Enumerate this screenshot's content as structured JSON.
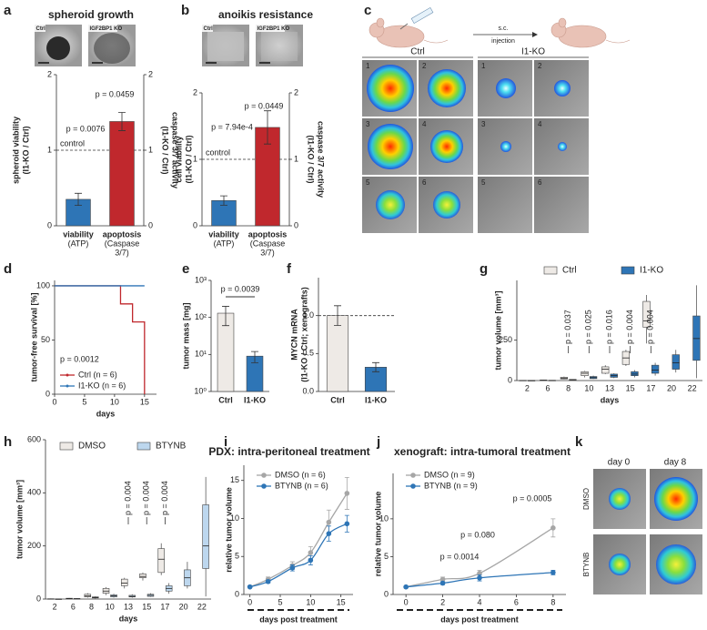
{
  "chart_data": [
    {
      "panel": "a",
      "type": "bar",
      "title": "spheroid growth",
      "image_labels": [
        "Ctrl",
        "IGF2BP1 KO"
      ],
      "categories": [
        [
          "viability",
          "(ATP)"
        ],
        [
          "apoptosis",
          "(Caspase",
          "3/7)"
        ]
      ],
      "series": [
        {
          "color": "#2e75b6",
          "values": [
            0.35,
            null
          ],
          "errors": [
            0.08,
            null
          ]
        },
        {
          "color": "#c0282d",
          "axis": "y2",
          "values": [
            null,
            1.38
          ],
          "errors": [
            null,
            0.12
          ]
        }
      ],
      "ylim": [
        0,
        2
      ],
      "yticks": [
        0,
        1,
        2
      ],
      "y2lim": [
        0,
        2
      ],
      "y2ticks": [
        0,
        1,
        2
      ],
      "ylabel": [
        "spheroid viability",
        "(I1-KO / Ctrl)"
      ],
      "ylabel_color": "#2e75b6",
      "y2label": [
        "caspase 3/7 activity",
        "(I1-KO / Ctrl)"
      ],
      "y2label_color": "#c0282d",
      "reference_line": {
        "value": 1,
        "label": "control"
      },
      "annotations": [
        "p = 0.0076",
        "p = 0.0459"
      ]
    },
    {
      "panel": "b",
      "type": "bar",
      "title": "anoikis resistance",
      "image_labels": [
        "Ctrl",
        "IGF2BP1 KO"
      ],
      "categories": [
        [
          "viability",
          "(ATP)"
        ],
        [
          "apoptosis",
          "(Caspase",
          "3/7)"
        ]
      ],
      "series": [
        {
          "color": "#2e75b6",
          "values": [
            0.38,
            null
          ],
          "errors": [
            0.07,
            null
          ]
        },
        {
          "color": "#c0282d",
          "axis": "y2",
          "values": [
            null,
            1.48
          ],
          "errors": [
            null,
            0.25
          ]
        }
      ],
      "ylim": [
        0,
        2
      ],
      "yticks": [
        0,
        1,
        2
      ],
      "y2lim": [
        0,
        2
      ],
      "y2ticks": [
        0,
        1,
        2
      ],
      "ylabel": [
        "cell viability",
        "(I1-KO / Ctrl)"
      ],
      "ylabel_color": "#2e75b6",
      "y2label": [
        "caspase 3/7 activity",
        "(I1-KO / Ctrl)"
      ],
      "y2label_color": "#c0282d",
      "reference_line": {
        "value": 1,
        "label": "control"
      },
      "annotations": [
        "p = 7.94e-4",
        "p = 0.0449"
      ]
    },
    {
      "panel": "d",
      "type": "line",
      "step": true,
      "series": [
        {
          "name": "Ctrl (n = 6)",
          "color": "#c0282d",
          "x": [
            0,
            11,
            13,
            15
          ],
          "values": [
            100,
            83.3,
            66.7,
            0
          ]
        },
        {
          "name": "I1-KO (n = 6)",
          "color": "#2e75b6",
          "x": [
            0,
            15
          ],
          "values": [
            100,
            100
          ]
        }
      ],
      "xlim": [
        0,
        17
      ],
      "xticks": [
        0,
        5,
        10,
        15
      ],
      "ylim": [
        0,
        105
      ],
      "yticks": [
        0,
        50,
        100
      ],
      "xlabel": "days",
      "ylabel": [
        "tumor-free survival [%]"
      ],
      "annotations": [
        "p = 0.0012"
      ]
    },
    {
      "panel": "e",
      "type": "bar",
      "ylog": true,
      "categories": [
        [
          "Ctrl"
        ],
        [
          "I1-KO"
        ]
      ],
      "values": [
        130,
        9
      ],
      "errors": [
        70,
        3
      ],
      "colors": [
        "#eeeae6",
        "#2e75b6"
      ],
      "ylim": [
        1,
        1000
      ],
      "yticks": [
        {
          "value": 1,
          "label": "10⁰"
        },
        {
          "value": 10,
          "label": "10¹"
        },
        {
          "value": 100,
          "label": "10²"
        },
        {
          "value": 1000,
          "label": "10³"
        }
      ],
      "ylabel": [
        "tumor mass [mg]"
      ],
      "annotations": [
        "p = 0.0039"
      ]
    },
    {
      "panel": "f",
      "type": "bar",
      "categories": [
        [
          "Ctrl"
        ],
        [
          "I1-KO"
        ]
      ],
      "values": [
        1.0,
        0.32
      ],
      "errors": [
        0.13,
        0.06
      ],
      "colors": [
        "#eeeae6",
        "#2e75b6"
      ],
      "ylim": [
        0,
        1.5
      ],
      "yticks": [
        {
          "value": 0,
          "label": "0.0"
        },
        {
          "value": 0.5,
          "label": "0.5"
        },
        {
          "value": 1,
          "label": "1.0"
        }
      ],
      "ylabel": [
        "MYCN mRNA",
        "(I1-KO / Ctrl; xenografts)"
      ],
      "reference_line": {
        "value": 1
      }
    },
    {
      "panel": "g",
      "type": "box",
      "categories": [
        "2",
        "6",
        "8",
        "10",
        "13",
        "15",
        "17",
        "20",
        "22"
      ],
      "series": [
        {
          "name": "Ctrl",
          "color": "#eeeae6",
          "boxes": [
            [
              0,
              0,
              0,
              1,
              1
            ],
            [
              0,
              1,
              2,
              3,
              4
            ],
            [
              8,
              10,
              15,
              20,
              25
            ],
            [
              20,
              30,
              45,
              55,
              60
            ],
            [
              40,
              45,
              70,
              85,
              95
            ],
            [
              90,
              100,
              140,
              180,
              190
            ],
            [
              230,
              330,
              370,
              490,
              530
            ],
            null,
            null
          ]
        },
        {
          "name": "I1-KO",
          "color": "#2e75b6",
          "boxes": [
            [
              0,
              0,
              0,
              0,
              0
            ],
            [
              0,
              0,
              1,
              1,
              2
            ],
            [
              2,
              3,
              5,
              7,
              8
            ],
            [
              10,
              12,
              18,
              25,
              30
            ],
            [
              15,
              20,
              30,
              40,
              45
            ],
            [
              20,
              30,
              40,
              55,
              65
            ],
            [
              30,
              45,
              65,
              95,
              110
            ],
            [
              50,
              70,
              110,
              160,
              190
            ],
            [
              15,
              125,
              260,
              400,
              590
            ]
          ]
        }
      ],
      "ylim": [
        0,
        620
      ],
      "yticks": [
        0,
        250
      ],
      "xlabel": "days",
      "ylabel": [
        "tumor volume [mm³]"
      ],
      "annotations": [
        {
          "text": "p = 0.037",
          "at": "8"
        },
        {
          "text": "p = 0.025",
          "at": "10"
        },
        {
          "text": "p = 0.016",
          "at": "13"
        },
        {
          "text": "p = 0.004",
          "at": "15"
        },
        {
          "text": "p = 0.004",
          "at": "17"
        }
      ]
    },
    {
      "panel": "h",
      "type": "box",
      "categories": [
        "2",
        "6",
        "8",
        "10",
        "13",
        "15",
        "17",
        "20",
        "22"
      ],
      "series": [
        {
          "name": "DMSO",
          "color": "#eeeae6",
          "boxes": [
            [
              0,
              0,
              0,
              1,
              2
            ],
            [
              0,
              1,
              2,
              3,
              4
            ],
            [
              5,
              8,
              12,
              18,
              22
            ],
            [
              15,
              22,
              30,
              40,
              45
            ],
            [
              40,
              50,
              60,
              75,
              80
            ],
            [
              70,
              80,
              85,
              95,
              100
            ],
            [
              90,
              100,
              150,
              190,
              210
            ],
            null,
            null
          ]
        },
        {
          "name": "BTYNB",
          "color": "#bdd7ee",
          "boxes": [
            [
              0,
              0,
              0,
              0,
              0
            ],
            [
              0,
              0,
              1,
              2,
              3
            ],
            [
              2,
              4,
              6,
              8,
              10
            ],
            [
              5,
              8,
              12,
              16,
              20
            ],
            [
              5,
              8,
              10,
              14,
              18
            ],
            [
              8,
              10,
              14,
              18,
              22
            ],
            [
              20,
              30,
              40,
              50,
              60
            ],
            [
              40,
              50,
              80,
              110,
              140
            ],
            [
              10,
              115,
              200,
              355,
              460
            ]
          ]
        }
      ],
      "ylim": [
        0,
        600
      ],
      "yticks": [
        0,
        200,
        400,
        600
      ],
      "xlabel": "days",
      "ylabel": [
        "tumor volume [mm³]"
      ],
      "annotations": [
        {
          "text": "p = 0.004",
          "at": "13"
        },
        {
          "text": "p = 0.004",
          "at": "15"
        },
        {
          "text": "p = 0.004",
          "at": "17"
        }
      ]
    },
    {
      "panel": "i",
      "type": "line",
      "title": "PDX: intra-peritoneal treatment",
      "series": [
        {
          "name": "DMSO (n = 6)",
          "color": "#a6a6a6",
          "x": [
            0,
            3,
            7,
            10,
            13,
            16
          ],
          "values": [
            1,
            2,
            3.8,
            5.5,
            9.5,
            13.3
          ],
          "errors": [
            0.1,
            0.3,
            0.5,
            0.8,
            1.6,
            2.1
          ]
        },
        {
          "name": "BTYNB (n = 6)",
          "color": "#2e75b6",
          "x": [
            0,
            3,
            7,
            10,
            13,
            16
          ],
          "values": [
            1,
            1.7,
            3.5,
            4.5,
            8,
            9.3
          ],
          "errors": [
            0.1,
            0.2,
            0.4,
            0.6,
            1,
            1.1
          ]
        }
      ],
      "xlim": [
        -1,
        17
      ],
      "xticks": [
        0,
        5,
        10,
        15
      ],
      "ylim": [
        0,
        17
      ],
      "yticks": [
        0,
        5,
        10,
        15
      ],
      "xlabel": "days post treatment",
      "ylabel": [
        "relative tumor volume"
      ]
    },
    {
      "panel": "j",
      "type": "line",
      "title": "xenograft: intra-tumoral treatment",
      "series": [
        {
          "name": "DMSO (n = 9)",
          "color": "#a6a6a6",
          "x": [
            0,
            2,
            4,
            8
          ],
          "values": [
            1,
            2,
            2.8,
            8.8
          ],
          "errors": [
            0.1,
            0.3,
            0.4,
            1.2
          ]
        },
        {
          "name": "BTYNB (n = 9)",
          "color": "#2e75b6",
          "x": [
            0,
            2,
            4,
            8
          ],
          "values": [
            1,
            1.5,
            2.2,
            2.9
          ],
          "errors": [
            0.1,
            0.2,
            0.4,
            0.3
          ]
        }
      ],
      "xlim": [
        -0.7,
        8.7
      ],
      "xticks": [
        0,
        2,
        4,
        6,
        8
      ],
      "ylim": [
        0,
        16
      ],
      "yticks": [
        0,
        5,
        10
      ],
      "xlabel": "days post treatment",
      "ylabel": [
        "relative tumor volume"
      ],
      "annotations": [
        "p = 0.0014",
        "p = 0.080",
        "p = 0.0005"
      ]
    }
  ],
  "panel_c": {
    "letter": "c",
    "injection": [
      "s.c.",
      "injection"
    ],
    "groups": [
      {
        "label": "Ctrl",
        "tiles": [
          "1",
          "2",
          "3",
          "4",
          "5",
          "6"
        ]
      },
      {
        "label": "I1-KO",
        "tiles": [
          "1",
          "2",
          "3",
          "4",
          "5",
          "6"
        ]
      }
    ]
  },
  "panel_k": {
    "letter": "k",
    "columns": [
      "day 0",
      "day 8"
    ],
    "rows": [
      "DMSO",
      "BTYNB"
    ]
  }
}
